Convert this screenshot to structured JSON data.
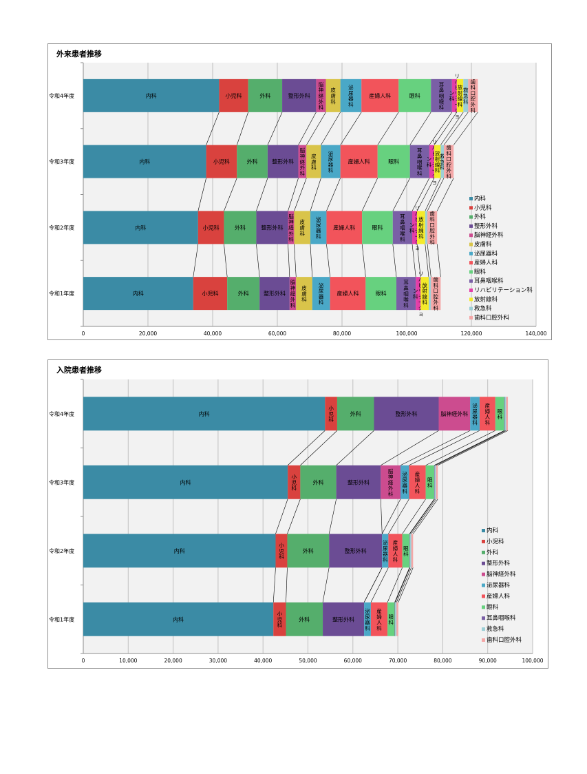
{
  "chart_data": [
    {
      "type": "bar",
      "stacked": true,
      "orientation": "horizontal",
      "title": "外来患者推移",
      "categories": [
        "令和4年度",
        "令和3年度",
        "令和2年度",
        "令和1年度"
      ],
      "xlim": [
        0,
        140000
      ],
      "xticks": [
        "0",
        "20,000",
        "40,000",
        "60,000",
        "80,000",
        "100,000",
        "120,000",
        "140,000"
      ],
      "grid": true,
      "legend_position": "right",
      "series": [
        {
          "name": "内科",
          "color": "#3b8ba5",
          "values": [
            42000,
            38000,
            35500,
            34000
          ]
        },
        {
          "name": "小児科",
          "color": "#d9423e",
          "values": [
            9000,
            9500,
            8000,
            10500
          ]
        },
        {
          "name": "外科",
          "color": "#55ae6c",
          "values": [
            10500,
            9500,
            10000,
            10000
          ]
        },
        {
          "name": "整形外科",
          "color": "#6b4c94",
          "values": [
            10500,
            9500,
            9800,
            9300
          ]
        },
        {
          "name": "脳神経外科",
          "color": "#cc4c8f",
          "values": [
            3000,
            2500,
            1900,
            2000
          ]
        },
        {
          "name": "皮膚科",
          "color": "#d9c44a",
          "values": [
            4500,
            4500,
            5000,
            5000
          ]
        },
        {
          "name": "泌尿器科",
          "color": "#4aa8c7",
          "values": [
            6500,
            6000,
            5000,
            5500
          ]
        },
        {
          "name": "産婦人科",
          "color": "#f2545b",
          "values": [
            11500,
            11500,
            11000,
            11000
          ]
        },
        {
          "name": "眼科",
          "color": "#67d17f",
          "values": [
            10000,
            10000,
            9500,
            9500
          ]
        },
        {
          "name": "耳鼻咽喉科",
          "color": "#7a5fa6",
          "values": [
            6500,
            6000,
            6000,
            6000
          ]
        },
        {
          "name": "リハビリテーション科",
          "color": "#e43ea8",
          "values": [
            1500,
            1500,
            1500,
            1500
          ]
        },
        {
          "name": "放射線科",
          "color": "#f4ea2a",
          "values": [
            2000,
            2000,
            2500,
            2500
          ]
        },
        {
          "name": "救急科",
          "color": "#9ccfd6",
          "values": [
            1500,
            1000,
            700,
            700
          ]
        },
        {
          "name": "歯科口腔外科",
          "color": "#f4a7a7",
          "values": [
            3000,
            3000,
            3000,
            3000
          ]
        }
      ],
      "bar_labels": [
        [
          "内科",
          "小児科",
          "外科",
          "整形外科",
          "脳神経外科",
          "皮膚科",
          "泌尿器科",
          "産婦人科",
          "眼科",
          "耳鼻咽喉科",
          "リハビリテーション科",
          "放射線科",
          "救急科",
          "歯科口腔外科"
        ],
        [
          "内科",
          "小児科",
          "外科",
          "整形外科",
          "脳神経外科",
          "皮膚科",
          "泌尿器科",
          "産婦人科",
          "眼科",
          "耳鼻咽喉科",
          "リハビリテーション科",
          "放射線科",
          "救急科",
          "歯科口腔外科"
        ],
        [
          "内科",
          "小児科",
          "外科",
          "整形外科",
          "脳神経外科",
          "皮膚科",
          "泌尿器科",
          "産婦人科",
          "眼科",
          "耳鼻咽喉科",
          "リハビリテーション科",
          "放射線科",
          "",
          "歯科口腔外科"
        ],
        [
          "内科",
          "小児科",
          "外科",
          "整形外科",
          "脳神経外科",
          "皮膚科",
          "泌尿器科",
          "産婦人科",
          "眼科",
          "耳鼻咽喉科",
          "リハビリテーション科",
          "放射線科",
          "",
          "歯科口腔外科"
        ]
      ]
    },
    {
      "type": "bar",
      "stacked": true,
      "orientation": "horizontal",
      "title": "入院患者推移",
      "categories": [
        "令和4年度",
        "令和3年度",
        "令和2年度",
        "令和1年度"
      ],
      "xlim": [
        0,
        100000
      ],
      "xticks": [
        "0",
        "10,000",
        "20,000",
        "30,000",
        "40,000",
        "50,000",
        "60,000",
        "70,000",
        "80,000",
        "90,000",
        "100,000"
      ],
      "grid": true,
      "legend_position": "right",
      "series": [
        {
          "name": "内科",
          "color": "#3b8ba5",
          "values": [
            53800,
            45500,
            42800,
            42300
          ]
        },
        {
          "name": "小児科",
          "color": "#d9423e",
          "values": [
            2700,
            2800,
            2600,
            2800
          ]
        },
        {
          "name": "外科",
          "color": "#55ae6c",
          "values": [
            8200,
            8000,
            9300,
            8200
          ]
        },
        {
          "name": "整形外科",
          "color": "#6b4c94",
          "values": [
            14400,
            9900,
            11800,
            9200
          ]
        },
        {
          "name": "脳神経外科",
          "color": "#cc4c8f",
          "values": [
            7000,
            4400,
            0,
            0
          ]
        },
        {
          "name": "泌尿器科",
          "color": "#4aa8c7",
          "values": [
            2100,
            1900,
            1400,
            1500
          ]
        },
        {
          "name": "産婦人科",
          "color": "#f2545b",
          "values": [
            3500,
            3700,
            3100,
            3700
          ]
        },
        {
          "name": "眼科",
          "color": "#67d17f",
          "values": [
            2000,
            1900,
            1600,
            1600
          ]
        },
        {
          "name": "耳鼻咽喉科",
          "color": "#7a5fa6",
          "values": [
            100,
            100,
            100,
            100
          ]
        },
        {
          "name": "救急科",
          "color": "#9ccfd6",
          "values": [
            300,
            300,
            300,
            300
          ]
        },
        {
          "name": "歯科口腔外科",
          "color": "#f4a7a7",
          "values": [
            400,
            400,
            400,
            400
          ]
        }
      ],
      "bar_labels": [
        [
          "内科",
          "小児科",
          "外科",
          "整形外科",
          "脳神経外科",
          "泌尿器科",
          "産婦人科",
          "眼科",
          "",
          "",
          ""
        ],
        [
          "内科",
          "小児科",
          "外科",
          "整形外科",
          "脳神経外科",
          "泌尿器科",
          "産婦人科",
          "眼科",
          "",
          "",
          ""
        ],
        [
          "内科",
          "小児科",
          "外科",
          "整形外科",
          "",
          "泌尿器科",
          "産婦人科",
          "眼科",
          "",
          "",
          ""
        ],
        [
          "内科",
          "小児科",
          "外科",
          "整形外科",
          "",
          "泌尿器科",
          "産婦人科",
          "眼科",
          "",
          "",
          ""
        ]
      ]
    }
  ]
}
